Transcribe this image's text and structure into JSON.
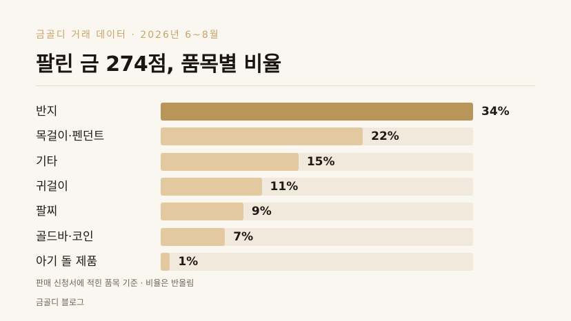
{
  "header": {
    "eyebrow": "금골디 거래 데이터 · 2026년 6~8월",
    "title": "팔린 금 274점, 품목별 비율"
  },
  "chart_data": {
    "type": "bar",
    "orientation": "horizontal",
    "categories": [
      "반지",
      "목걸이·펜던트",
      "기타",
      "귀걸이",
      "팔찌",
      "골드바·코인",
      "아기 돌 제품"
    ],
    "values": [
      34,
      22,
      15,
      11,
      9,
      7,
      1
    ],
    "value_labels": [
      "34%",
      "22%",
      "15%",
      "11%",
      "9%",
      "7%",
      "1%"
    ],
    "xlim": [
      0,
      34
    ],
    "colors": {
      "highlight": "#b8965a",
      "bar": "#e3c9a0",
      "track": "#f0e9dc"
    }
  },
  "footer": {
    "note": "판매 신청서에 적힌 품목 기준 · 비율은 반올림",
    "brand": "금골디 블로그"
  }
}
